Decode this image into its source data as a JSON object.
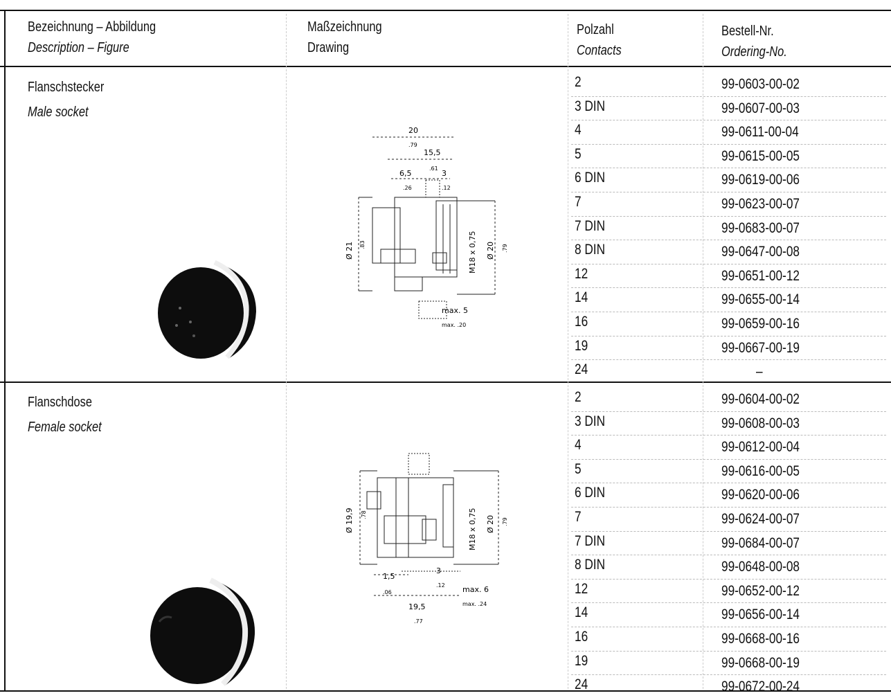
{
  "header": {
    "col1_de": "Bezeichnung – Abbildung",
    "col1_en": "Description – Figure",
    "col2_de": "Maßzeichnung",
    "col2_en": "Drawing",
    "col3_de": "Polzahl",
    "col3_en": "Contacts",
    "col4_de": "Bestell-Nr.",
    "col4_en": "Ordering-No."
  },
  "sections": [
    {
      "title_de": "Flanschstecker",
      "title_en": "Male socket",
      "drawing": {
        "dim_20": "20",
        "dim_79": ".79",
        "dim_15_5": "15,5",
        "dim_61": ".61",
        "dim_6_5": "6,5",
        "dim_26": ".26",
        "dim_3": "3",
        "dim_12": ".12",
        "dia_21": "Ø 21",
        "dia_83": ".83",
        "thread": "M18 x 0,75",
        "dia_20": "Ø 20",
        "dia_79": ".79",
        "max": "max. 5",
        "max_in": "max. .20"
      },
      "rows": [
        {
          "contacts": "2",
          "order": "99-0603-00-02"
        },
        {
          "contacts": "3 DIN",
          "order": "99-0607-00-03"
        },
        {
          "contacts": "4",
          "order": "99-0611-00-04"
        },
        {
          "contacts": "5",
          "order": "99-0615-00-05"
        },
        {
          "contacts": "6 DIN",
          "order": "99-0619-00-06"
        },
        {
          "contacts": "7",
          "order": "99-0623-00-07"
        },
        {
          "contacts": "7 DIN",
          "order": "99-0683-00-07"
        },
        {
          "contacts": "8 DIN",
          "order": "99-0647-00-08"
        },
        {
          "contacts": "12",
          "order": "99-0651-00-12"
        },
        {
          "contacts": "14",
          "order": "99-0655-00-14"
        },
        {
          "contacts": "16",
          "order": "99-0659-00-16"
        },
        {
          "contacts": "19",
          "order": "99-0667-00-19"
        },
        {
          "contacts": "24",
          "order": "–"
        }
      ]
    },
    {
      "title_de": "Flanschdose",
      "title_en": "Female socket",
      "drawing": {
        "dia_19_9": "Ø 19,9",
        "dia_78": ".78",
        "thread": "M18 x 0,75",
        "dia_20": "Ø 20",
        "dia_79": ".79",
        "dim_1_5": "1,5",
        "dim_06": ".06",
        "dim_3": "3",
        "dim_12": ".12",
        "max": "max. 6",
        "max_in": "max. .24",
        "dim_19_5": "19,5",
        "dim_77": ".77"
      },
      "rows": [
        {
          "contacts": "2",
          "order": "99-0604-00-02"
        },
        {
          "contacts": "3 DIN",
          "order": "99-0608-00-03"
        },
        {
          "contacts": "4",
          "order": "99-0612-00-04"
        },
        {
          "contacts": "5",
          "order": "99-0616-00-05"
        },
        {
          "contacts": "6 DIN",
          "order": "99-0620-00-06"
        },
        {
          "contacts": "7",
          "order": "99-0624-00-07"
        },
        {
          "contacts": "7 DIN",
          "order": "99-0684-00-07"
        },
        {
          "contacts": "8 DIN",
          "order": "99-0648-00-08"
        },
        {
          "contacts": "12",
          "order": "99-0652-00-12"
        },
        {
          "contacts": "14",
          "order": "99-0656-00-14"
        },
        {
          "contacts": "16",
          "order": "99-0668-00-16"
        },
        {
          "contacts": "19",
          "order": "99-0668-00-19"
        },
        {
          "contacts": "24",
          "order": "99-0672-00-24"
        }
      ]
    }
  ]
}
